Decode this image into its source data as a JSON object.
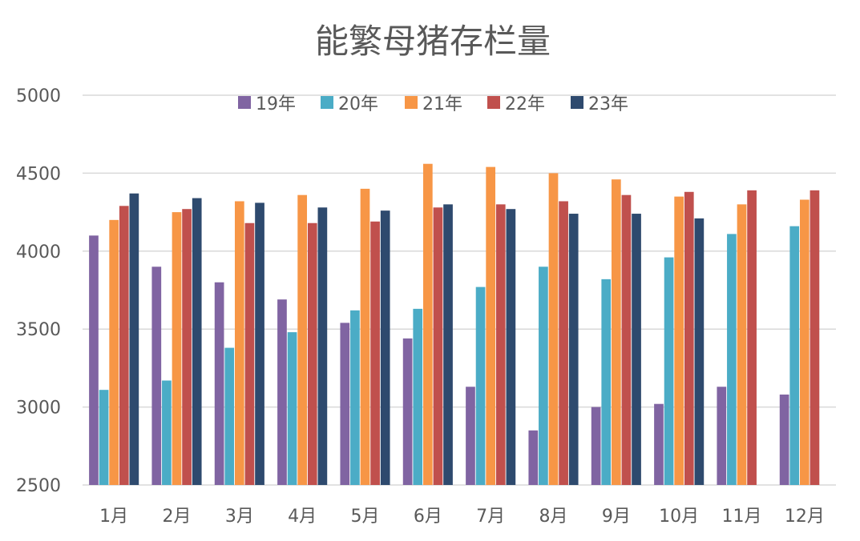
{
  "chart_data": {
    "type": "bar",
    "title": "能繁母猪存栏量",
    "xlabel": "",
    "ylabel": "",
    "ylim": [
      2500,
      5000
    ],
    "yticks": [
      2500,
      3000,
      3500,
      4000,
      4500,
      5000
    ],
    "grid": true,
    "legend_position": "top",
    "categories": [
      "1月",
      "2月",
      "3月",
      "4月",
      "5月",
      "6月",
      "7月",
      "8月",
      "9月",
      "10月",
      "11月",
      "12月"
    ],
    "series": [
      {
        "name": "19年",
        "color": "#8064A2",
        "values": [
          4100,
          3900,
          3800,
          3690,
          3540,
          3440,
          3130,
          2850,
          3000,
          3020,
          3130,
          3080
        ]
      },
      {
        "name": "20年",
        "color": "#4BACC6",
        "values": [
          3110,
          3170,
          3380,
          3480,
          3620,
          3630,
          3770,
          3900,
          3820,
          3960,
          4110,
          4160
        ]
      },
      {
        "name": "21年",
        "color": "#F79646",
        "values": [
          4200,
          4250,
          4320,
          4360,
          4400,
          4560,
          4540,
          4500,
          4460,
          4350,
          4300,
          4330
        ]
      },
      {
        "name": "22年",
        "color": "#C0504D",
        "values": [
          4290,
          4270,
          4180,
          4180,
          4190,
          4280,
          4300,
          4320,
          4360,
          4380,
          4390,
          4390
        ]
      },
      {
        "name": "23年",
        "color": "#2E4A6E",
        "values": [
          4370,
          4340,
          4310,
          4280,
          4260,
          4300,
          4270,
          4240,
          4240,
          4210,
          null,
          null
        ]
      }
    ]
  }
}
